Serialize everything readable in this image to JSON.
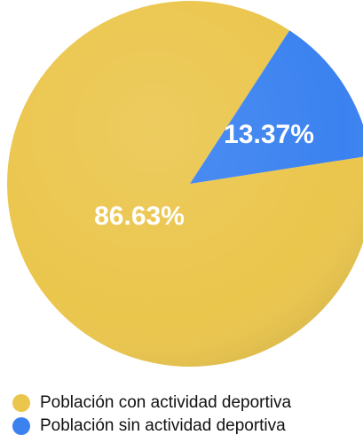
{
  "chart_data": {
    "type": "pie",
    "slices": [
      {
        "label": "Población con actividad deportiva",
        "value": 86.63,
        "display": "86.63%",
        "color": "#EBC64D"
      },
      {
        "label": "Población sin actividad deportiva",
        "value": 13.37,
        "display": "13.37%",
        "color": "#3B82F0"
      }
    ],
    "legend_position": "bottom-left"
  },
  "legend": {
    "items": [
      {
        "label": "Población con actividad deportiva",
        "color": "#EBC64D"
      },
      {
        "label": "Población sin actividad deportiva",
        "color": "#3B82F0"
      }
    ]
  }
}
